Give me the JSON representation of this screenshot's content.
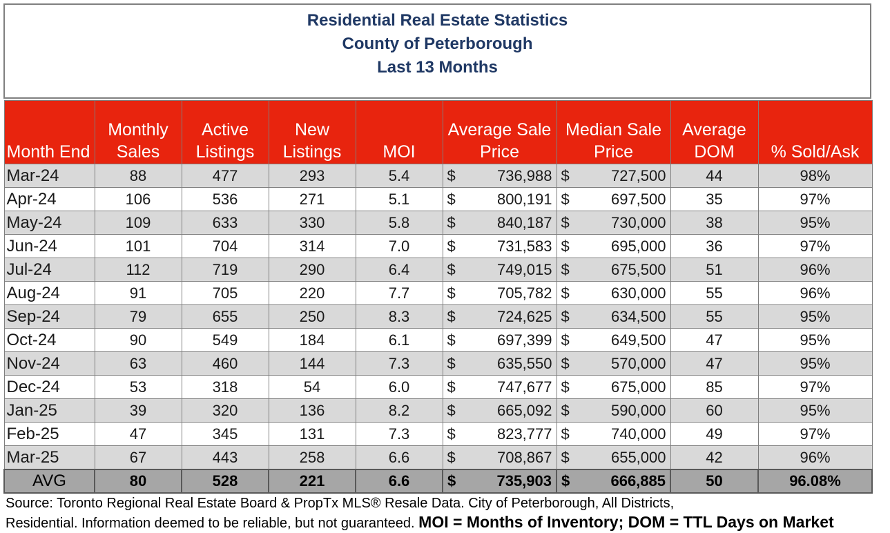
{
  "title": {
    "line1": "Residential Real Estate Statistics",
    "line2": "County of Peterborough",
    "line3": "Last 13 Months"
  },
  "headers": {
    "month": "Month End",
    "sales": [
      "Monthly",
      "Sales"
    ],
    "active": [
      "Active",
      "Listings"
    ],
    "new": [
      "New",
      "Listings"
    ],
    "moi": "MOI",
    "avg_price": [
      "Average Sale",
      "Price"
    ],
    "median_price": [
      "Median Sale",
      "Price"
    ],
    "dom": [
      "Average",
      "DOM"
    ],
    "sold_ask": "% Sold/Ask"
  },
  "currency_symbol": "$",
  "rows": [
    {
      "month": "Mar-24",
      "sales": "88",
      "active": "477",
      "new": "293",
      "moi": "5.4",
      "avg": "736,988",
      "median": "727,500",
      "dom": "44",
      "sold": "98%"
    },
    {
      "month": "Apr-24",
      "sales": "106",
      "active": "536",
      "new": "271",
      "moi": "5.1",
      "avg": "800,191",
      "median": "697,500",
      "dom": "35",
      "sold": "97%"
    },
    {
      "month": "May-24",
      "sales": "109",
      "active": "633",
      "new": "330",
      "moi": "5.8",
      "avg": "840,187",
      "median": "730,000",
      "dom": "38",
      "sold": "95%"
    },
    {
      "month": "Jun-24",
      "sales": "101",
      "active": "704",
      "new": "314",
      "moi": "7.0",
      "avg": "731,583",
      "median": "695,000",
      "dom": "36",
      "sold": "97%"
    },
    {
      "month": "Jul-24",
      "sales": "112",
      "active": "719",
      "new": "290",
      "moi": "6.4",
      "avg": "749,015",
      "median": "675,500",
      "dom": "51",
      "sold": "96%"
    },
    {
      "month": "Aug-24",
      "sales": "91",
      "active": "705",
      "new": "220",
      "moi": "7.7",
      "avg": "705,782",
      "median": "630,000",
      "dom": "55",
      "sold": "96%"
    },
    {
      "month": "Sep-24",
      "sales": "79",
      "active": "655",
      "new": "250",
      "moi": "8.3",
      "avg": "724,625",
      "median": "634,500",
      "dom": "55",
      "sold": "95%"
    },
    {
      "month": "Oct-24",
      "sales": "90",
      "active": "549",
      "new": "184",
      "moi": "6.1",
      "avg": "697,399",
      "median": "649,500",
      "dom": "47",
      "sold": "95%"
    },
    {
      "month": "Nov-24",
      "sales": "63",
      "active": "460",
      "new": "144",
      "moi": "7.3",
      "avg": "635,550",
      "median": "570,000",
      "dom": "47",
      "sold": "95%"
    },
    {
      "month": "Dec-24",
      "sales": "53",
      "active": "318",
      "new": "54",
      "moi": "6.0",
      "avg": "747,677",
      "median": "675,000",
      "dom": "85",
      "sold": "97%"
    },
    {
      "month": "Jan-25",
      "sales": "39",
      "active": "320",
      "new": "136",
      "moi": "8.2",
      "avg": "665,092",
      "median": "590,000",
      "dom": "60",
      "sold": "95%"
    },
    {
      "month": "Feb-25",
      "sales": "47",
      "active": "345",
      "new": "131",
      "moi": "7.3",
      "avg": "823,777",
      "median": "740,000",
      "dom": "49",
      "sold": "97%"
    },
    {
      "month": "Mar-25",
      "sales": "67",
      "active": "443",
      "new": "258",
      "moi": "6.6",
      "avg": "708,867",
      "median": "655,000",
      "dom": "42",
      "sold": "96%"
    }
  ],
  "average": {
    "label": "AVG",
    "sales": "80",
    "active": "528",
    "new": "221",
    "moi": "6.6",
    "avg": "735,903",
    "median": "666,885",
    "dom": "50",
    "sold": "96.08%"
  },
  "footnote": {
    "line1": "Source: Toronto Regional Real Estate Board & PropTx MLS® Resale Data. City of Peterborough, All Districts,",
    "line2": "Residential.  Information deemed to be reliable, but not guaranteed.",
    "legend": "MOI = Months of Inventory; DOM = TTL Days on Market"
  }
}
